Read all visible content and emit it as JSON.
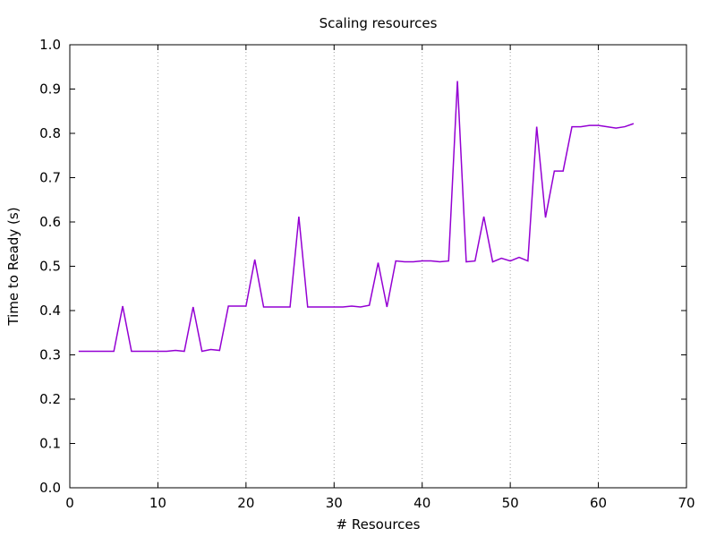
{
  "chart_data": {
    "type": "line",
    "title": "Scaling resources",
    "xlabel": "# Resources",
    "ylabel": "Time to Ready (s)",
    "xlim": [
      0,
      70
    ],
    "ylim": [
      0.0,
      1.0
    ],
    "x_ticks": [
      "0",
      "10",
      "20",
      "30",
      "40",
      "50",
      "60",
      "70"
    ],
    "y_ticks": [
      "0.0",
      "0.1",
      "0.2",
      "0.3",
      "0.4",
      "0.5",
      "0.6",
      "0.7",
      "0.8",
      "0.9",
      "1.0"
    ],
    "x_tick_values": [
      0,
      10,
      20,
      30,
      40,
      50,
      60,
      70
    ],
    "y_tick_values": [
      0.0,
      0.1,
      0.2,
      0.3,
      0.4,
      0.5,
      0.6,
      0.7,
      0.8,
      0.9,
      1.0
    ],
    "grid": {
      "x": true,
      "y": false
    },
    "series": [
      {
        "color": "#9400d3",
        "x": [
          1,
          2,
          3,
          4,
          5,
          6,
          7,
          8,
          9,
          10,
          11,
          12,
          13,
          14,
          15,
          16,
          17,
          18,
          19,
          20,
          21,
          22,
          23,
          24,
          25,
          26,
          27,
          28,
          29,
          30,
          31,
          32,
          33,
          34,
          35,
          36,
          37,
          38,
          39,
          40,
          41,
          42,
          43,
          44,
          45,
          46,
          47,
          48,
          49,
          50,
          51,
          52,
          53,
          54,
          55,
          56,
          57,
          58,
          59,
          60,
          61,
          62,
          63,
          64
        ],
        "y": [
          0.308,
          0.308,
          0.308,
          0.308,
          0.308,
          0.41,
          0.308,
          0.308,
          0.308,
          0.308,
          0.308,
          0.31,
          0.308,
          0.408,
          0.308,
          0.312,
          0.31,
          0.41,
          0.41,
          0.41,
          0.515,
          0.408,
          0.408,
          0.408,
          0.408,
          0.612,
          0.408,
          0.408,
          0.408,
          0.408,
          0.408,
          0.41,
          0.408,
          0.412,
          0.508,
          0.408,
          0.512,
          0.51,
          0.51,
          0.512,
          0.512,
          0.51,
          0.512,
          0.918,
          0.51,
          0.512,
          0.612,
          0.51,
          0.518,
          0.512,
          0.52,
          0.512,
          0.815,
          0.61,
          0.715,
          0.715,
          0.815,
          0.815,
          0.818,
          0.818,
          0.815,
          0.812,
          0.815,
          0.822
        ]
      }
    ]
  }
}
